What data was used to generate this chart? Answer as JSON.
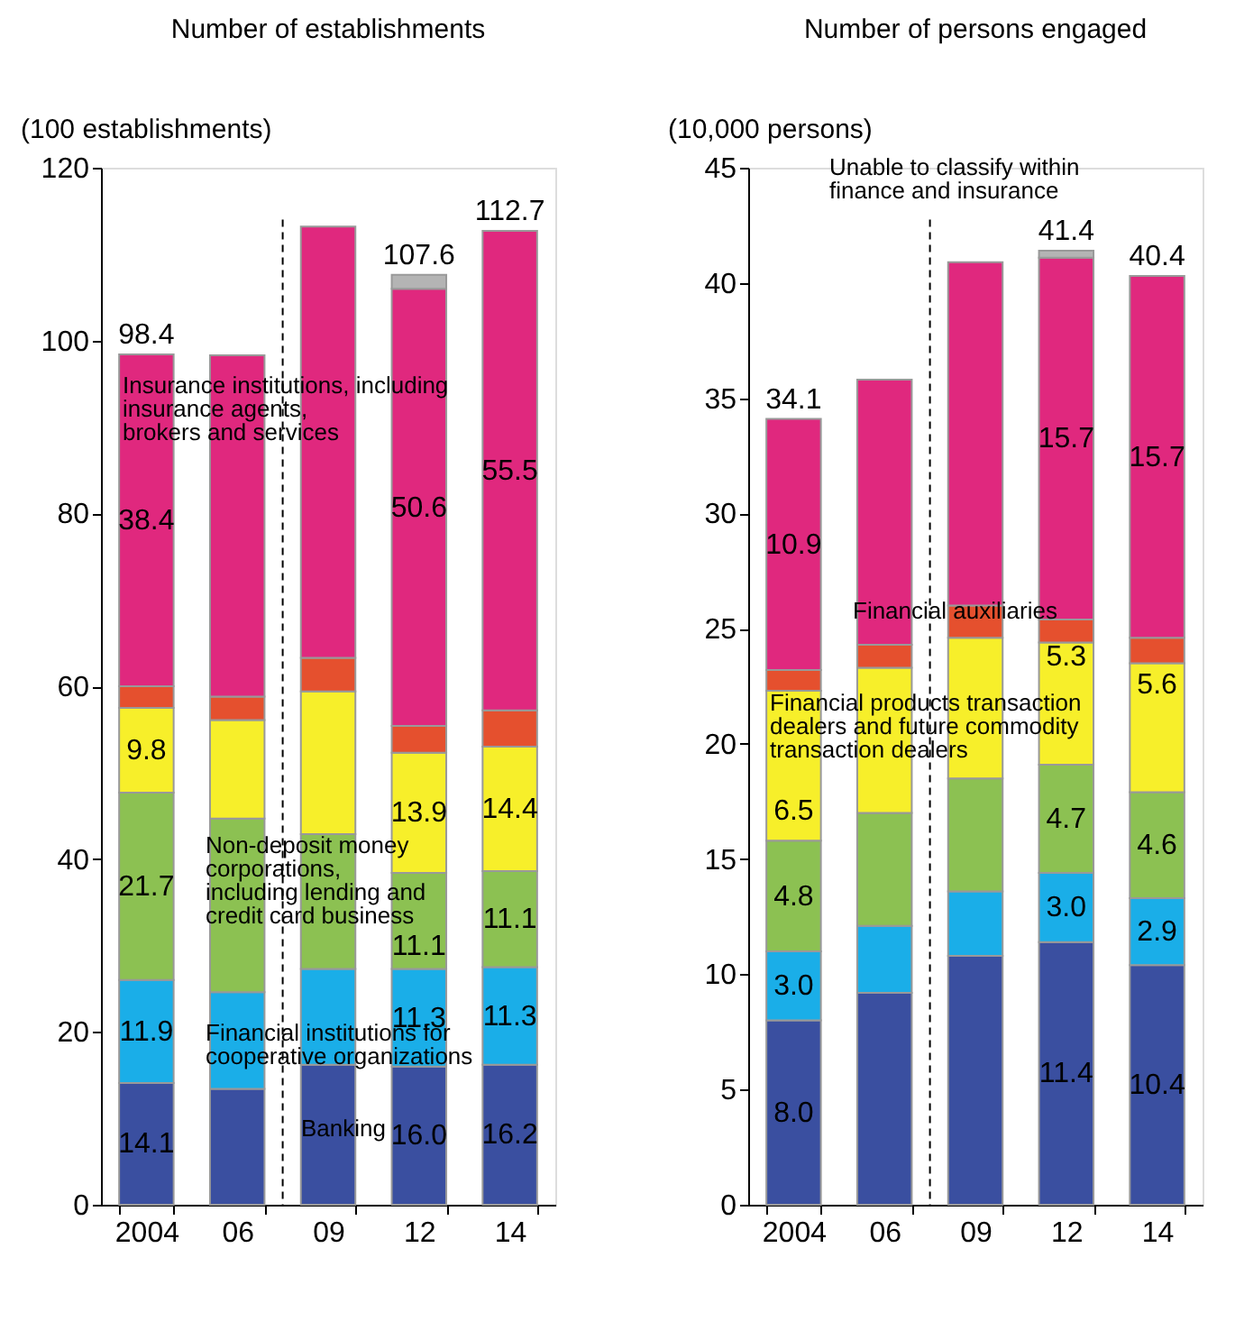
{
  "chart_data": [
    {
      "type": "bar",
      "stacked": true,
      "title": "Number of establishments",
      "ylabel": "(100 establishments)",
      "categories": [
        "2004",
        "06",
        "09",
        "12",
        "14"
      ],
      "ylim": [
        0,
        120
      ],
      "yticks": [
        0,
        20,
        40,
        60,
        80,
        100,
        120
      ],
      "grid": false,
      "legend": false,
      "series": [
        {
          "color": "#3a4fa0",
          "values": [
            14.1,
            13.4,
            16.2,
            16.0,
            16.2
          ],
          "value_labels": [
            "14.1",
            null,
            null,
            "16.0",
            "16.2"
          ]
        },
        {
          "color": "#1aaee8",
          "values": [
            11.9,
            11.2,
            11.1,
            11.3,
            11.3
          ],
          "value_labels": [
            "11.9",
            null,
            null,
            "11.3",
            "11.3"
          ]
        },
        {
          "color": "#8cc152",
          "values": [
            21.7,
            20.1,
            15.6,
            11.1,
            11.1
          ],
          "value_labels": [
            "21.7",
            null,
            null,
            "11.1",
            "11.1"
          ]
        },
        {
          "color": "#f7ef2a",
          "values": [
            9.8,
            11.4,
            16.5,
            13.9,
            14.4
          ],
          "value_labels": [
            "9.8",
            null,
            null,
            "13.9",
            "14.4"
          ]
        },
        {
          "color": "#e5502e",
          "values": [
            2.5,
            2.7,
            3.9,
            3.1,
            4.2
          ]
        },
        {
          "color": "#e0287e",
          "values": [
            38.4,
            39.5,
            49.9,
            50.6,
            55.5
          ],
          "value_labels": [
            "38.4",
            null,
            null,
            "50.6",
            "55.5"
          ]
        },
        {
          "color": "#b4b4b4",
          "values": [
            null,
            null,
            null,
            1.6,
            null
          ]
        }
      ],
      "totals": [
        "98.4",
        null,
        null,
        "107.6",
        "112.7"
      ],
      "annotations": [
        "Insurance institutions, including\ninsurance agents,\nbrokers and services",
        "Non-deposit money\ncorporations,\nincluding lending and\ncredit card business",
        "Financial institutions for\ncooperative organizations",
        "Banking"
      ]
    },
    {
      "type": "bar",
      "stacked": true,
      "title": "Number of persons engaged",
      "ylabel": "(10,000 persons)",
      "categories": [
        "2004",
        "06",
        "09",
        "12",
        "14"
      ],
      "ylim": [
        0,
        45
      ],
      "yticks": [
        0,
        5,
        10,
        15,
        20,
        25,
        30,
        35,
        40,
        45
      ],
      "grid": false,
      "legend": false,
      "series": [
        {
          "color": "#3a4fa0",
          "values": [
            8.0,
            9.2,
            10.8,
            11.4,
            10.4
          ],
          "value_labels": [
            "8.0",
            null,
            null,
            "11.4",
            "10.4"
          ]
        },
        {
          "color": "#1aaee8",
          "values": [
            3.0,
            2.9,
            2.8,
            3.0,
            2.9
          ],
          "value_labels": [
            "3.0",
            null,
            null,
            "3.0",
            "2.9"
          ]
        },
        {
          "color": "#8cc152",
          "values": [
            4.8,
            4.9,
            4.9,
            4.7,
            4.6
          ],
          "value_labels": [
            "4.8",
            null,
            null,
            "4.7",
            "4.6"
          ]
        },
        {
          "color": "#f7ef2a",
          "values": [
            6.5,
            6.3,
            6.1,
            5.3,
            5.6
          ],
          "value_labels": [
            "6.5",
            null,
            null,
            "5.3",
            "5.6"
          ]
        },
        {
          "color": "#e5502e",
          "values": [
            0.9,
            1.0,
            1.4,
            1.0,
            1.1
          ]
        },
        {
          "color": "#e0287e",
          "values": [
            10.9,
            11.5,
            14.9,
            15.7,
            15.7
          ],
          "value_labels": [
            "10.9",
            null,
            null,
            "15.7",
            "15.7"
          ]
        },
        {
          "color": "#b4b4b4",
          "values": [
            null,
            null,
            null,
            0.3,
            null
          ]
        }
      ],
      "totals": [
        "34.1",
        null,
        null,
        "41.4",
        "40.4"
      ],
      "annotations": [
        "Unable to classify within\nfinance and insurance",
        "Financial auxiliaries",
        "Financial products transaction\ndealers and future commodity\ntransaction dealers"
      ]
    }
  ]
}
